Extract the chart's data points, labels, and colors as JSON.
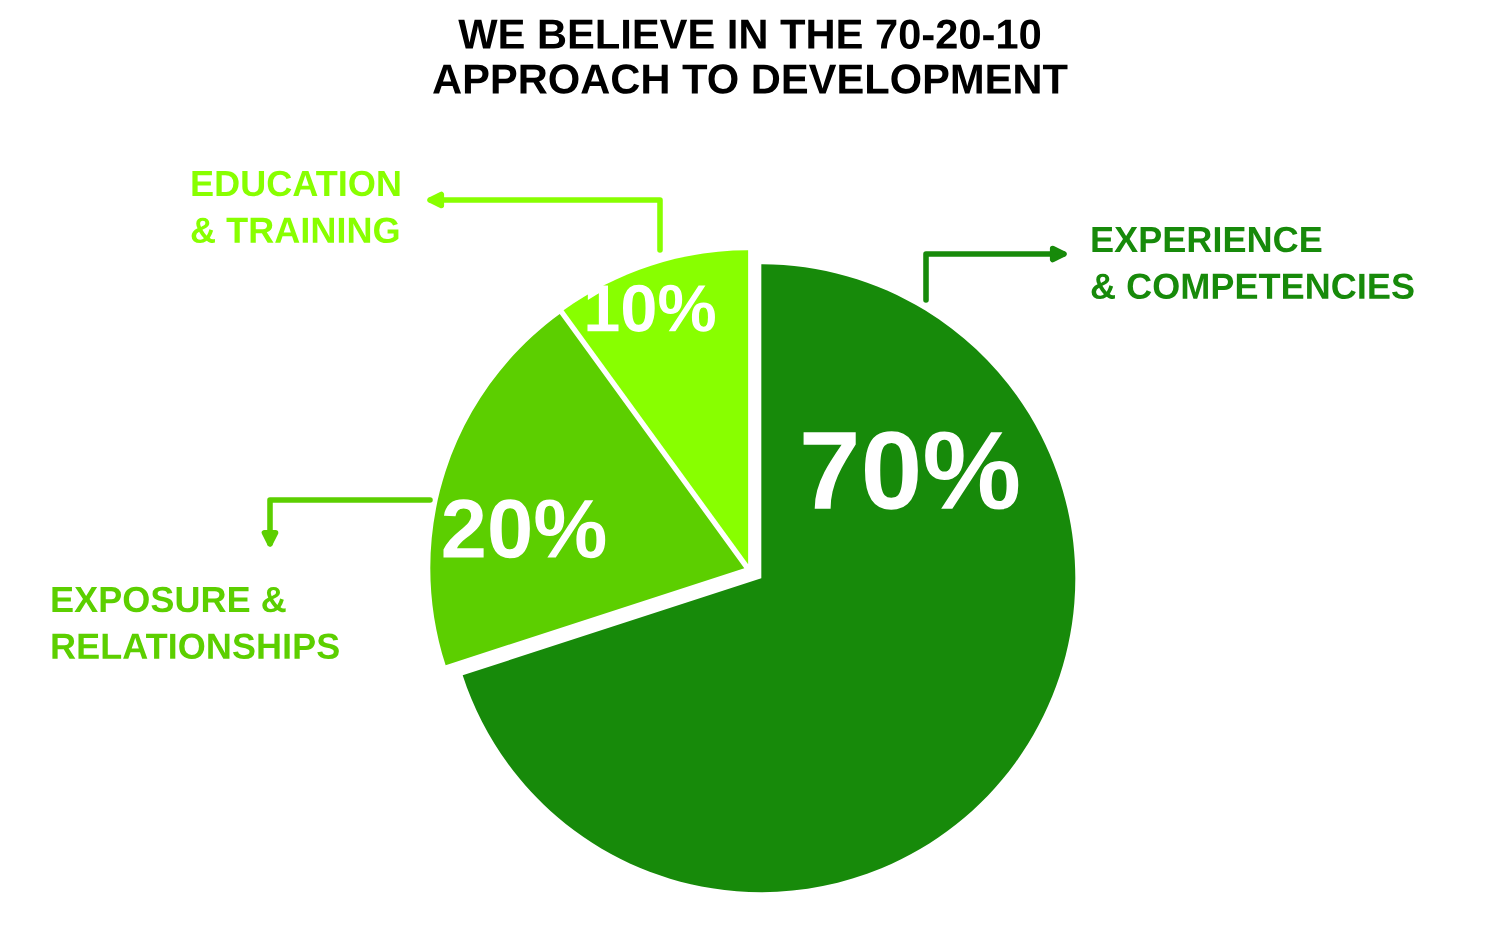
{
  "chart_data": {
    "type": "pie",
    "title": "WE BELIEVE IN THE 70-20-10\nAPPROACH TO DEVELOPMENT",
    "categories": [
      "EXPERIENCE\n& COMPETENCIES",
      "EXPOSURE &\nRELATIONSHIPS",
      "EDUCATION\n& TRAINING"
    ],
    "values": [
      70,
      20,
      10
    ],
    "value_labels": [
      "70%",
      "20%",
      "10%"
    ],
    "colors": [
      "#178a0a",
      "#5ccf00",
      "#88ff00"
    ]
  }
}
